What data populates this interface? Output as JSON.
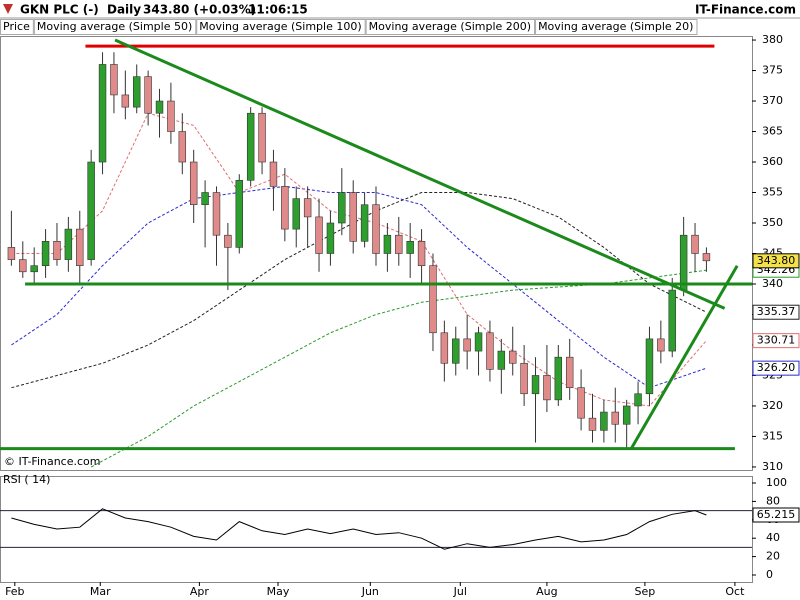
{
  "header": {
    "symbol": "GKN PLC (-)",
    "period": "Daily",
    "quote": "343.80 (+0.03%)",
    "time": "11:06:15",
    "brand": "IT-Finance.com"
  },
  "chart_data": {
    "type": "candlestick",
    "price_legend": "Price",
    "copyright": "© IT-Finance.com",
    "x": [
      0,
      1,
      2,
      3,
      4,
      5,
      6,
      7,
      8,
      9,
      10,
      11,
      12,
      13,
      14,
      15,
      16,
      17,
      18,
      19,
      20,
      21,
      22,
      23,
      24,
      25,
      26,
      27,
      28,
      29,
      30,
      31,
      32,
      33,
      34,
      35,
      36,
      37,
      38,
      39,
      40,
      41,
      42,
      43,
      44,
      45,
      46,
      47,
      48,
      49,
      50,
      51,
      52,
      53,
      54,
      55,
      56,
      57,
      58,
      59,
      60,
      61
    ],
    "candles": [
      [
        346,
        352,
        343,
        344
      ],
      [
        344,
        347,
        341,
        342
      ],
      [
        342,
        346,
        340,
        343
      ],
      [
        343,
        349,
        341,
        347
      ],
      [
        347,
        350,
        343,
        344
      ],
      [
        344,
        351,
        342,
        349
      ],
      [
        349,
        352,
        340,
        343
      ],
      [
        344,
        362,
        343,
        360
      ],
      [
        360,
        378,
        358,
        376
      ],
      [
        376,
        378,
        368,
        371
      ],
      [
        371,
        375,
        367,
        369
      ],
      [
        369,
        376,
        368,
        374
      ],
      [
        374,
        375,
        366,
        368
      ],
      [
        368,
        372,
        364,
        370
      ],
      [
        370,
        373,
        363,
        365
      ],
      [
        365,
        368,
        358,
        360
      ],
      [
        360,
        362,
        350,
        353
      ],
      [
        353,
        357,
        346,
        355
      ],
      [
        355,
        356,
        343,
        348
      ],
      [
        348,
        350,
        339,
        346
      ],
      [
        346,
        358,
        345,
        357
      ],
      [
        357,
        369,
        356,
        368
      ],
      [
        368,
        369,
        358,
        360
      ],
      [
        360,
        362,
        352,
        356
      ],
      [
        356,
        359,
        347,
        349
      ],
      [
        349,
        356,
        346,
        354
      ],
      [
        354,
        356,
        346,
        351
      ],
      [
        351,
        354,
        342,
        345
      ],
      [
        345,
        352,
        343,
        350
      ],
      [
        350,
        359,
        348,
        355
      ],
      [
        355,
        357,
        345,
        347
      ],
      [
        347,
        355,
        346,
        353
      ],
      [
        353,
        356,
        343,
        345
      ],
      [
        345,
        350,
        342,
        348
      ],
      [
        348,
        351,
        343,
        345
      ],
      [
        345,
        350,
        341,
        347
      ],
      [
        347,
        349,
        340,
        343
      ],
      [
        343,
        345,
        329,
        332
      ],
      [
        332,
        334,
        324,
        327
      ],
      [
        327,
        333,
        325,
        331
      ],
      [
        331,
        335,
        326,
        329
      ],
      [
        329,
        333,
        325,
        332
      ],
      [
        332,
        334,
        324,
        326
      ],
      [
        326,
        331,
        322,
        329
      ],
      [
        329,
        333,
        325,
        327
      ],
      [
        327,
        330,
        320,
        322
      ],
      [
        322,
        328,
        314,
        325
      ],
      [
        325,
        330,
        319,
        321
      ],
      [
        321,
        330,
        320,
        328
      ],
      [
        328,
        331,
        321,
        323
      ],
      [
        323,
        326,
        316,
        318
      ],
      [
        318,
        322,
        314,
        316
      ],
      [
        316,
        321,
        314,
        319
      ],
      [
        319,
        323,
        314,
        317
      ],
      [
        317,
        321,
        313,
        320
      ],
      [
        320,
        324,
        317,
        322
      ],
      [
        322,
        333,
        320,
        331
      ],
      [
        331,
        334,
        327,
        329
      ],
      [
        329,
        341,
        328,
        339
      ],
      [
        339,
        351,
        338,
        348
      ],
      [
        348,
        350,
        342,
        345
      ],
      [
        345,
        346,
        342,
        343.8
      ]
    ],
    "up_color": "#2e9e2e",
    "down_color": "#e08a8a",
    "last": 343.8,
    "last_label": "343.80",
    "series": [
      {
        "name": "Moving average (Simple 50)",
        "color": "#2a2ad0",
        "x": [
          0,
          4,
          8,
          12,
          16,
          20,
          24,
          28,
          32,
          36,
          40,
          44,
          48,
          52,
          56,
          61
        ],
        "values": [
          330,
          335,
          343,
          350,
          354,
          355,
          356,
          355,
          355,
          353,
          346,
          340,
          334,
          328,
          323,
          326.2
        ],
        "label": "326.20"
      },
      {
        "name": "Moving average (Simple 100)",
        "color": "#222222",
        "x": [
          0,
          4,
          8,
          12,
          16,
          20,
          24,
          28,
          32,
          36,
          40,
          44,
          48,
          52,
          56,
          61
        ],
        "values": [
          323,
          325,
          327,
          330,
          334,
          339,
          344,
          348,
          352,
          355,
          355,
          354,
          351,
          346,
          340,
          335.37
        ],
        "label": "335.37"
      },
      {
        "name": "Moving average (Simple 200)",
        "color": "#2a9a2a",
        "x": [
          7,
          12,
          16,
          20,
          24,
          28,
          32,
          36,
          40,
          44,
          48,
          52,
          56,
          61
        ],
        "values": [
          310,
          315,
          320,
          324,
          328,
          332,
          335,
          337,
          338,
          339,
          339.5,
          340,
          341,
          342.26
        ],
        "label": "342.26"
      },
      {
        "name": "Moving average (Simple 20)",
        "color": "#e07070",
        "x": [
          0,
          4,
          8,
          12,
          16,
          20,
          24,
          28,
          32,
          36,
          40,
          44,
          48,
          52,
          56,
          61
        ],
        "values": [
          345,
          345,
          352,
          368,
          366,
          355,
          358,
          352,
          350,
          347,
          335,
          329,
          324,
          321,
          320,
          330.71
        ],
        "label": "330.71"
      }
    ],
    "trendlines": [
      {
        "color": "#e00000",
        "x": [
          6.5,
          61.7
        ],
        "y": [
          379,
          379
        ]
      },
      {
        "color": "#1a8a1a",
        "x": [
          1.2,
          65
        ],
        "y": [
          340,
          340
        ]
      },
      {
        "color": "#1a8a1a",
        "x": [
          -1,
          63.5
        ],
        "y": [
          313,
          313
        ]
      },
      {
        "color": "#1a8a1a",
        "x": [
          9.1,
          62.6
        ],
        "y": [
          380,
          336
        ]
      },
      {
        "color": "#1a8a1a",
        "x": [
          54.4,
          63.7
        ],
        "y": [
          313,
          343
        ]
      }
    ],
    "xlim": [
      -1,
      65
    ],
    "xticks": [
      {
        "value": 0.3,
        "label": "Feb"
      },
      {
        "value": 7.8,
        "label": "Mar"
      },
      {
        "value": 16.5,
        "label": "Apr"
      },
      {
        "value": 23.4,
        "label": "May"
      },
      {
        "value": 31.5,
        "label": "Jun"
      },
      {
        "value": 39.4,
        "label": "Jul"
      },
      {
        "value": 47,
        "label": "Aug"
      },
      {
        "value": 55.6,
        "label": "Sep"
      },
      {
        "value": 63.5,
        "label": "Oct"
      }
    ],
    "ylim": [
      309.5,
      380.5
    ],
    "yticks": [
      310,
      315,
      320,
      325,
      330,
      335,
      340,
      345,
      350,
      355,
      360,
      365,
      370,
      375,
      380
    ],
    "rsi": {
      "title": "RSI ( 14)",
      "x": [
        0,
        2,
        4,
        6,
        8,
        10,
        12,
        14,
        16,
        18,
        20,
        22,
        24,
        26,
        28,
        30,
        32,
        34,
        36,
        38,
        40,
        42,
        44,
        46,
        48,
        50,
        52,
        54,
        56,
        58,
        60,
        61
      ],
      "values": [
        62,
        55,
        50,
        52,
        72,
        62,
        58,
        52,
        42,
        38,
        58,
        48,
        44,
        50,
        45,
        50,
        44,
        46,
        40,
        28,
        34,
        30,
        33,
        38,
        42,
        36,
        38,
        44,
        58,
        66,
        70,
        65.215
      ],
      "label": "65.215",
      "levels": [
        70,
        30
      ],
      "ylim": [
        0,
        100
      ],
      "yticks": [
        0,
        20,
        40,
        60,
        80,
        100
      ]
    }
  }
}
